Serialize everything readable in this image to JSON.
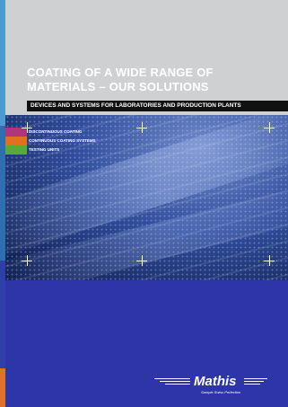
{
  "title_lines": [
    "COATING OF A WIDE RANGE OF",
    "MATERIALS – OUR SOLUTIONS"
  ],
  "subtitle": "DEVICES AND SYSTEMS FOR LABORATORIES AND PRODUCTION PLANTS",
  "legend": [
    {
      "label": "DISCONTINUOUS COATING",
      "color": "#b0357f"
    },
    {
      "label": "CONTINUOUS COATING SYSTEMS",
      "color": "#e2701f"
    },
    {
      "label": "TESTING UNITS",
      "color": "#5aa838"
    }
  ],
  "brand": {
    "name": "Mathis",
    "tagline": "Sample Swiss Perfection"
  },
  "colors": {
    "top_grey": "#cfd0d2",
    "bottom_blue": "#2d35a8",
    "subtitle_bar": "#111111"
  },
  "icons": [
    "plus-mark-icon"
  ]
}
